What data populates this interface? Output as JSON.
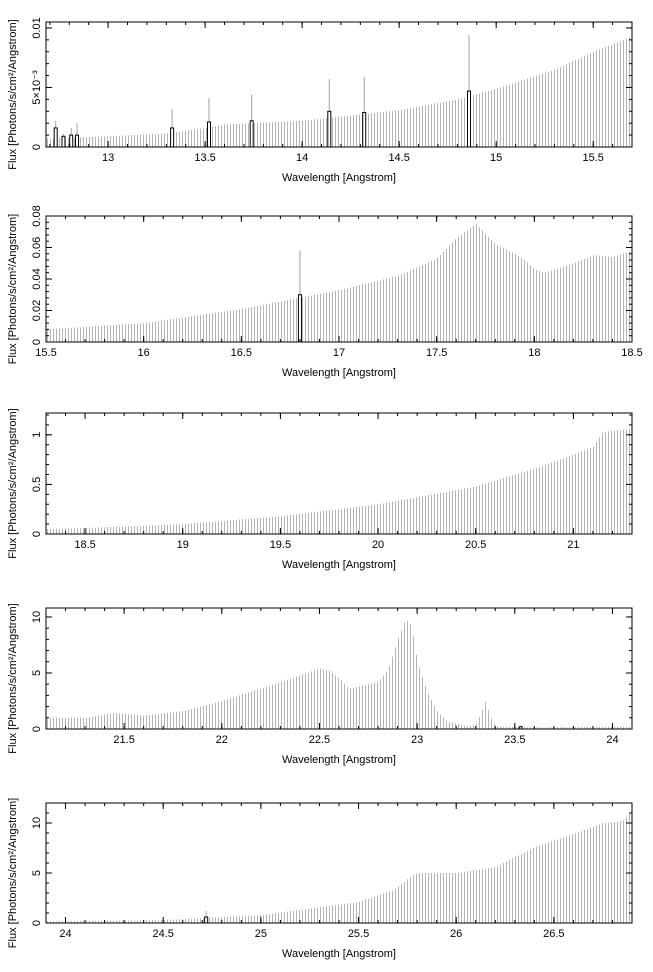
{
  "chart_data": [
    {
      "type": "bar",
      "xlabel": "Wavelength [Angstrom]",
      "ylabel": "Flux [Photons/s/cm²/Angstrom]",
      "xlim": [
        12.68,
        15.7
      ],
      "ylim": [
        0,
        0.0105
      ],
      "xticks": [
        13,
        13.5,
        14,
        14.5,
        15,
        15.5
      ],
      "xtick_labels": [
        "13",
        "13.5",
        "14",
        "14.5",
        "15",
        "15.5"
      ],
      "yticks": [
        0,
        0.005,
        0.01
      ],
      "ytick_labels": [
        "0",
        "5×10⁻³",
        "0.01"
      ],
      "profile": [
        [
          12.68,
          0.0007
        ],
        [
          13.0,
          0.0009
        ],
        [
          13.3,
          0.00115
        ],
        [
          13.5,
          0.0016
        ],
        [
          13.6,
          0.0019
        ],
        [
          14.0,
          0.0022
        ],
        [
          14.5,
          0.0031
        ],
        [
          14.8,
          0.004
        ],
        [
          15.0,
          0.0049
        ],
        [
          15.3,
          0.0065
        ],
        [
          15.5,
          0.008
        ],
        [
          15.7,
          0.0093
        ]
      ],
      "lines": [
        [
          12.73,
          0.0016,
          0.0022
        ],
        [
          12.77,
          0.0009,
          0.0011
        ],
        [
          12.81,
          0.001,
          0.0016
        ],
        [
          12.84,
          0.001,
          0.002
        ],
        [
          13.33,
          0.0016,
          0.0032
        ],
        [
          13.52,
          0.0021,
          0.0041
        ],
        [
          13.74,
          0.0022,
          0.0044
        ],
        [
          14.14,
          0.003,
          0.0057
        ],
        [
          14.32,
          0.0029,
          0.0059
        ],
        [
          14.86,
          0.0047,
          0.0094
        ]
      ]
    },
    {
      "type": "bar",
      "xlabel": "Wavelength [Angstrom]",
      "ylabel": "Flux [Photons/s/cm²/Angstrom]",
      "xlim": [
        15.5,
        18.5
      ],
      "ylim": [
        0,
        0.08
      ],
      "xticks": [
        15.5,
        16,
        16.5,
        17,
        17.5,
        18,
        18.5
      ],
      "xtick_labels": [
        "15.5",
        "16",
        "16.5",
        "17",
        "17.5",
        "18",
        "18.5"
      ],
      "yticks": [
        0,
        0.02,
        0.04,
        0.06,
        0.08
      ],
      "ytick_labels": [
        "0",
        "0.02",
        "0.04",
        "0.06",
        "0.08"
      ],
      "profile": [
        [
          15.5,
          0.008
        ],
        [
          16.0,
          0.012
        ],
        [
          16.5,
          0.021
        ],
        [
          17.0,
          0.033
        ],
        [
          17.3,
          0.042
        ],
        [
          17.5,
          0.053
        ],
        [
          17.6,
          0.066
        ],
        [
          17.7,
          0.075
        ],
        [
          17.8,
          0.062
        ],
        [
          17.9,
          0.056
        ],
        [
          17.95,
          0.052
        ],
        [
          18.0,
          0.046
        ],
        [
          18.05,
          0.044
        ],
        [
          18.2,
          0.05
        ],
        [
          18.3,
          0.055
        ],
        [
          18.4,
          0.054
        ],
        [
          18.5,
          0.058
        ]
      ],
      "lines": [
        [
          16.8,
          0.03,
          0.058
        ]
      ]
    },
    {
      "type": "bar",
      "xlabel": "Wavelength [Angstrom]",
      "ylabel": "Flux [Photons/s/cm²/Angstrom]",
      "xlim": [
        18.3,
        21.3
      ],
      "ylim": [
        0,
        1.22
      ],
      "xticks": [
        18.5,
        19,
        19.5,
        20,
        20.5,
        21
      ],
      "xtick_labels": [
        "18.5",
        "19",
        "19.5",
        "20",
        "20.5",
        "21"
      ],
      "yticks": [
        0,
        0.5,
        1
      ],
      "ytick_labels": [
        "0",
        "0.5",
        "1"
      ],
      "profile": [
        [
          18.3,
          0.05
        ],
        [
          18.5,
          0.06
        ],
        [
          19.0,
          0.1
        ],
        [
          19.5,
          0.18
        ],
        [
          20.0,
          0.3
        ],
        [
          20.5,
          0.48
        ],
        [
          20.8,
          0.66
        ],
        [
          21.0,
          0.8
        ],
        [
          21.1,
          0.88
        ],
        [
          21.15,
          1.03
        ],
        [
          21.3,
          1.06
        ]
      ],
      "lines": []
    },
    {
      "type": "bar",
      "xlabel": "Wavelength [Angstrom]",
      "ylabel": "Flux [Photons/s/cm²/Angstrom]",
      "xlim": [
        21.1,
        24.1
      ],
      "ylim": [
        0,
        10.8
      ],
      "xticks": [
        21.5,
        22,
        22.5,
        23,
        23.5,
        24
      ],
      "xtick_labels": [
        "21.5",
        "22",
        "22.5",
        "23",
        "23.5",
        "24"
      ],
      "yticks": [
        0,
        5,
        10
      ],
      "ytick_labels": [
        "0",
        "5",
        "10"
      ],
      "profile": [
        [
          21.1,
          1.0
        ],
        [
          21.3,
          1.0
        ],
        [
          21.45,
          1.45
        ],
        [
          21.6,
          1.2
        ],
        [
          21.8,
          1.6
        ],
        [
          22.0,
          2.5
        ],
        [
          22.3,
          4.2
        ],
        [
          22.4,
          4.8
        ],
        [
          22.5,
          5.4
        ],
        [
          22.55,
          5.2
        ],
        [
          22.6,
          4.5
        ],
        [
          22.65,
          3.6
        ],
        [
          22.7,
          3.8
        ],
        [
          22.8,
          4.2
        ],
        [
          22.85,
          5.3
        ],
        [
          22.9,
          8.0
        ],
        [
          22.94,
          9.8
        ],
        [
          22.97,
          9.2
        ],
        [
          23.0,
          6.0
        ],
        [
          23.05,
          3.3
        ],
        [
          23.1,
          1.6
        ],
        [
          23.15,
          0.7
        ],
        [
          23.25,
          0.25
        ],
        [
          23.3,
          0.4
        ],
        [
          23.33,
          1.6
        ],
        [
          23.35,
          2.5
        ],
        [
          23.37,
          1.2
        ],
        [
          23.4,
          0.2
        ],
        [
          23.6,
          0.15
        ],
        [
          24.1,
          0.2
        ]
      ],
      "lines": [
        [
          23.53,
          0.2,
          0.3
        ]
      ]
    },
    {
      "type": "bar",
      "xlabel": "Wavelength [Angstrom]",
      "ylabel": "Flux [Photons/s/cm²/Angstrom]",
      "xlim": [
        23.9,
        26.9
      ],
      "ylim": [
        0,
        12
      ],
      "xticks": [
        24,
        24.5,
        25,
        25.5,
        26,
        26.5
      ],
      "xtick_labels": [
        "24",
        "24.5",
        "25",
        "25.5",
        "26",
        "26.5"
      ],
      "yticks": [
        0,
        5,
        10
      ],
      "ytick_labels": [
        "0",
        "5",
        "10"
      ],
      "profile": [
        [
          23.9,
          0.15
        ],
        [
          24.5,
          0.3
        ],
        [
          25.0,
          0.8
        ],
        [
          25.5,
          2.1
        ],
        [
          25.68,
          3.3
        ],
        [
          25.75,
          4.4
        ],
        [
          25.8,
          5.0
        ],
        [
          26.0,
          5.0
        ],
        [
          26.2,
          5.6
        ],
        [
          26.4,
          7.6
        ],
        [
          26.6,
          8.9
        ],
        [
          26.75,
          10.0
        ],
        [
          26.85,
          10.2
        ],
        [
          26.9,
          11.2
        ]
      ],
      "lines": [
        [
          24.72,
          0.6,
          1.2
        ]
      ]
    }
  ]
}
